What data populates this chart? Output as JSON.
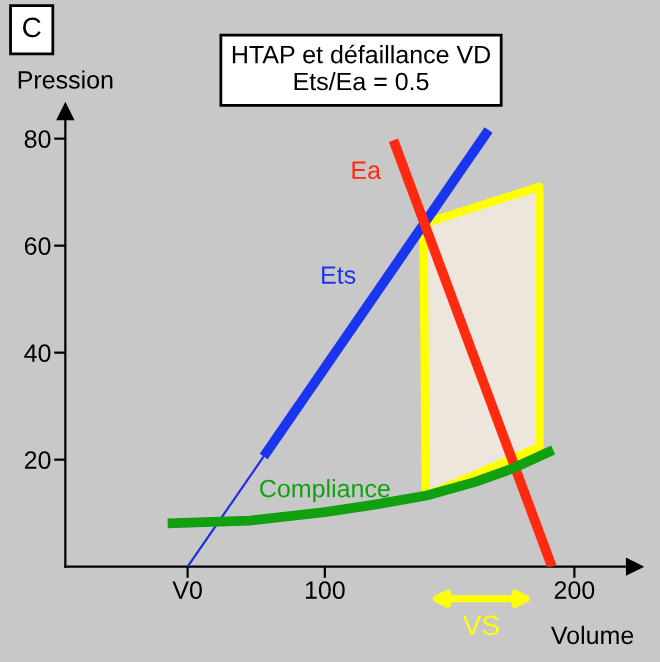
{
  "chart_data": {
    "type": "line",
    "title": "HTAP et défaillance VD",
    "subtitle": "Ets/Ea = 0.5",
    "xlabel": "Volume",
    "ylabel": "Pression",
    "xlim": [
      -4,
      224
    ],
    "ylim": [
      0,
      85
    ],
    "xticks": [
      {
        "value": 45,
        "label": "V0"
      },
      100,
      200
    ],
    "yticks": [
      20,
      40,
      60,
      80
    ],
    "series": [
      {
        "color": "#2030e0",
        "x": [
          45,
          75.5
        ],
        "values": [
          0,
          20.6
        ]
      },
      {
        "name": "Ets",
        "color": "#1a35f0",
        "x": [
          75.5,
          165.6
        ],
        "values": [
          20.6,
          81.6
        ]
      },
      {
        "name": "Ea",
        "color": "#ff2a10",
        "x": [
          127.5,
          191
        ],
        "values": [
          79.7,
          0
        ]
      },
      {
        "name": "Compliance",
        "color": "#10a010",
        "x": [
          37,
          70,
          100,
          120,
          140.8,
          160,
          175,
          191.5
        ],
        "values": [
          8.1,
          8.6,
          10.2,
          11.6,
          13.3,
          15.8,
          18.3,
          21.8
        ]
      },
      {
        "type": "area",
        "color": "#ffff00",
        "x": [
          140.5,
          139.5,
          186,
          186,
          140.5
        ],
        "values": [
          13.3,
          64.1,
          71,
          22.4,
          13.3
        ]
      }
    ],
    "annotations": [
      "C",
      "VS"
    ],
    "grid": false,
    "legend": false
  }
}
